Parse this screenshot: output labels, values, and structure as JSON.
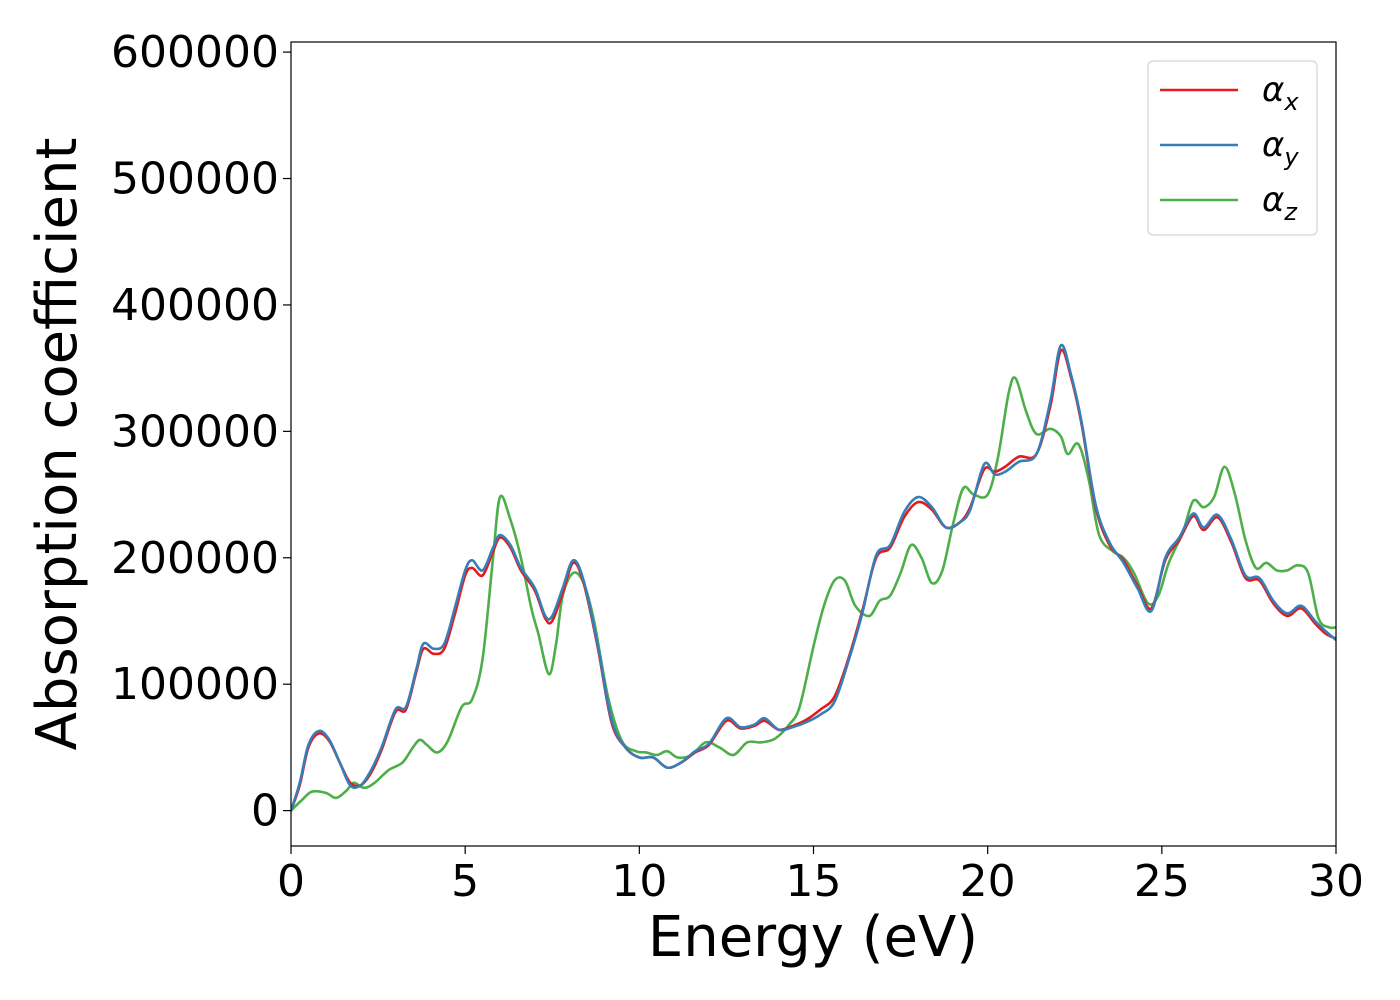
{
  "chart_data": {
    "type": "line",
    "title": "",
    "xlabel": "Energy (eV)",
    "ylabel": "Absorption coefficient",
    "xlim": [
      0,
      30
    ],
    "ylim": [
      -28000,
      608000
    ],
    "xticks": [
      0,
      5,
      10,
      15,
      20,
      25,
      30
    ],
    "xtick_labels": [
      "0",
      "5",
      "10",
      "15",
      "20",
      "25",
      "30"
    ],
    "yticks": [
      0,
      100000,
      200000,
      300000,
      400000,
      500000,
      600000
    ],
    "ytick_labels": [
      "0",
      "100000",
      "200000",
      "300000",
      "400000",
      "500000",
      "600000"
    ],
    "grid": false,
    "legend_position": "top-right",
    "series": [
      {
        "name": "αx",
        "base": "α",
        "sub": "x",
        "color": "#e41a1c",
        "points": [
          [
            0,
            0
          ],
          [
            0.25,
            20000
          ],
          [
            0.5,
            50000
          ],
          [
            0.8,
            61000
          ],
          [
            1.1,
            55000
          ],
          [
            1.4,
            38000
          ],
          [
            1.7,
            22000
          ],
          [
            2.0,
            20000
          ],
          [
            2.3,
            30000
          ],
          [
            2.6,
            48000
          ],
          [
            3.0,
            78000
          ],
          [
            3.3,
            80000
          ],
          [
            3.6,
            110000
          ],
          [
            3.8,
            128000
          ],
          [
            4.1,
            124000
          ],
          [
            4.4,
            128000
          ],
          [
            4.7,
            155000
          ],
          [
            5.0,
            186000
          ],
          [
            5.2,
            192000
          ],
          [
            5.5,
            186000
          ],
          [
            5.8,
            205000
          ],
          [
            6.0,
            216000
          ],
          [
            6.3,
            208000
          ],
          [
            6.6,
            190000
          ],
          [
            7.0,
            174000
          ],
          [
            7.3,
            152000
          ],
          [
            7.5,
            150000
          ],
          [
            7.8,
            172000
          ],
          [
            8.1,
            196000
          ],
          [
            8.4,
            180000
          ],
          [
            8.8,
            130000
          ],
          [
            9.2,
            70000
          ],
          [
            9.6,
            50000
          ],
          [
            10.0,
            42000
          ],
          [
            10.4,
            42000
          ],
          [
            10.8,
            34000
          ],
          [
            11.2,
            38000
          ],
          [
            11.6,
            46000
          ],
          [
            12.0,
            52000
          ],
          [
            12.5,
            71000
          ],
          [
            12.9,
            65000
          ],
          [
            13.3,
            67000
          ],
          [
            13.6,
            71000
          ],
          [
            14.0,
            64000
          ],
          [
            14.4,
            67000
          ],
          [
            14.8,
            72000
          ],
          [
            15.2,
            80000
          ],
          [
            15.6,
            90000
          ],
          [
            16.0,
            120000
          ],
          [
            16.4,
            158000
          ],
          [
            16.8,
            200000
          ],
          [
            17.2,
            208000
          ],
          [
            17.6,
            232000
          ],
          [
            18.0,
            244000
          ],
          [
            18.4,
            238000
          ],
          [
            18.8,
            224000
          ],
          [
            19.2,
            228000
          ],
          [
            19.5,
            240000
          ],
          [
            19.9,
            270000
          ],
          [
            20.2,
            268000
          ],
          [
            20.5,
            272000
          ],
          [
            20.9,
            280000
          ],
          [
            21.4,
            282000
          ],
          [
            21.8,
            320000
          ],
          [
            22.1,
            364000
          ],
          [
            22.4,
            342000
          ],
          [
            22.7,
            305000
          ],
          [
            23.1,
            240000
          ],
          [
            23.5,
            210000
          ],
          [
            23.9,
            198000
          ],
          [
            24.3,
            178000
          ],
          [
            24.7,
            160000
          ],
          [
            25.1,
            198000
          ],
          [
            25.5,
            214000
          ],
          [
            25.9,
            233000
          ],
          [
            26.2,
            222000
          ],
          [
            26.6,
            232000
          ],
          [
            27.0,
            212000
          ],
          [
            27.4,
            184000
          ],
          [
            27.8,
            182000
          ],
          [
            28.2,
            164000
          ],
          [
            28.6,
            154000
          ],
          [
            29.0,
            160000
          ],
          [
            29.4,
            148000
          ],
          [
            29.7,
            140000
          ],
          [
            30.0,
            136000
          ]
        ]
      },
      {
        "name": "αy",
        "base": "α",
        "sub": "y",
        "color": "#377eb8",
        "points": [
          [
            0,
            0
          ],
          [
            0.25,
            22000
          ],
          [
            0.5,
            52000
          ],
          [
            0.8,
            63000
          ],
          [
            1.1,
            56000
          ],
          [
            1.4,
            38000
          ],
          [
            1.7,
            20000
          ],
          [
            2.0,
            20000
          ],
          [
            2.3,
            32000
          ],
          [
            2.6,
            50000
          ],
          [
            3.0,
            80000
          ],
          [
            3.3,
            82000
          ],
          [
            3.6,
            112000
          ],
          [
            3.8,
            132000
          ],
          [
            4.1,
            128000
          ],
          [
            4.4,
            132000
          ],
          [
            4.7,
            160000
          ],
          [
            5.0,
            190000
          ],
          [
            5.2,
            198000
          ],
          [
            5.5,
            190000
          ],
          [
            5.8,
            208000
          ],
          [
            6.0,
            218000
          ],
          [
            6.3,
            210000
          ],
          [
            6.6,
            192000
          ],
          [
            7.0,
            176000
          ],
          [
            7.3,
            154000
          ],
          [
            7.5,
            154000
          ],
          [
            7.8,
            176000
          ],
          [
            8.1,
            198000
          ],
          [
            8.4,
            182000
          ],
          [
            8.8,
            132000
          ],
          [
            9.2,
            72000
          ],
          [
            9.6,
            50000
          ],
          [
            10.0,
            42000
          ],
          [
            10.4,
            42000
          ],
          [
            10.8,
            34000
          ],
          [
            11.2,
            38000
          ],
          [
            11.6,
            47000
          ],
          [
            12.0,
            53000
          ],
          [
            12.5,
            73000
          ],
          [
            12.9,
            66000
          ],
          [
            13.3,
            68000
          ],
          [
            13.6,
            73000
          ],
          [
            14.0,
            64000
          ],
          [
            14.4,
            66000
          ],
          [
            14.8,
            70000
          ],
          [
            15.2,
            76000
          ],
          [
            15.6,
            86000
          ],
          [
            16.0,
            118000
          ],
          [
            16.4,
            156000
          ],
          [
            16.8,
            202000
          ],
          [
            17.2,
            210000
          ],
          [
            17.6,
            236000
          ],
          [
            18.0,
            248000
          ],
          [
            18.4,
            240000
          ],
          [
            18.8,
            224000
          ],
          [
            19.2,
            228000
          ],
          [
            19.5,
            238000
          ],
          [
            19.9,
            274000
          ],
          [
            20.2,
            266000
          ],
          [
            20.5,
            268000
          ],
          [
            20.9,
            276000
          ],
          [
            21.4,
            282000
          ],
          [
            21.8,
            324000
          ],
          [
            22.1,
            368000
          ],
          [
            22.4,
            344000
          ],
          [
            22.7,
            307000
          ],
          [
            23.1,
            242000
          ],
          [
            23.5,
            212000
          ],
          [
            23.9,
            196000
          ],
          [
            24.3,
            176000
          ],
          [
            24.7,
            158000
          ],
          [
            25.1,
            200000
          ],
          [
            25.5,
            216000
          ],
          [
            25.9,
            235000
          ],
          [
            26.2,
            224000
          ],
          [
            26.6,
            234000
          ],
          [
            27.0,
            214000
          ],
          [
            27.4,
            186000
          ],
          [
            27.8,
            184000
          ],
          [
            28.2,
            166000
          ],
          [
            28.6,
            156000
          ],
          [
            29.0,
            162000
          ],
          [
            29.4,
            150000
          ],
          [
            29.7,
            142000
          ],
          [
            30.0,
            135000
          ]
        ]
      },
      {
        "name": "αz",
        "base": "α",
        "sub": "z",
        "color": "#4daf4a",
        "points": [
          [
            0,
            0
          ],
          [
            0.3,
            8000
          ],
          [
            0.6,
            15000
          ],
          [
            1.0,
            14000
          ],
          [
            1.3,
            10000
          ],
          [
            1.6,
            16000
          ],
          [
            1.8,
            22000
          ],
          [
            2.1,
            18000
          ],
          [
            2.4,
            22000
          ],
          [
            2.8,
            32000
          ],
          [
            3.2,
            38000
          ],
          [
            3.5,
            50000
          ],
          [
            3.7,
            56000
          ],
          [
            3.9,
            52000
          ],
          [
            4.2,
            46000
          ],
          [
            4.5,
            55000
          ],
          [
            4.9,
            82000
          ],
          [
            5.2,
            88000
          ],
          [
            5.5,
            120000
          ],
          [
            5.8,
            200000
          ],
          [
            6.0,
            248000
          ],
          [
            6.3,
            230000
          ],
          [
            6.6,
            200000
          ],
          [
            6.9,
            160000
          ],
          [
            7.1,
            140000
          ],
          [
            7.4,
            108000
          ],
          [
            7.6,
            130000
          ],
          [
            7.8,
            170000
          ],
          [
            8.1,
            188000
          ],
          [
            8.4,
            180000
          ],
          [
            8.7,
            150000
          ],
          [
            9.1,
            90000
          ],
          [
            9.5,
            55000
          ],
          [
            9.9,
            47000
          ],
          [
            10.2,
            46000
          ],
          [
            10.5,
            44000
          ],
          [
            10.8,
            47000
          ],
          [
            11.1,
            42000
          ],
          [
            11.5,
            44000
          ],
          [
            11.9,
            54000
          ],
          [
            12.3,
            50000
          ],
          [
            12.7,
            44000
          ],
          [
            13.1,
            54000
          ],
          [
            13.5,
            54000
          ],
          [
            13.9,
            57000
          ],
          [
            14.3,
            68000
          ],
          [
            14.6,
            82000
          ],
          [
            15.0,
            130000
          ],
          [
            15.3,
            162000
          ],
          [
            15.6,
            182000
          ],
          [
            15.9,
            182000
          ],
          [
            16.2,
            162000
          ],
          [
            16.6,
            154000
          ],
          [
            16.9,
            166000
          ],
          [
            17.2,
            170000
          ],
          [
            17.5,
            188000
          ],
          [
            17.8,
            210000
          ],
          [
            18.1,
            200000
          ],
          [
            18.4,
            180000
          ],
          [
            18.7,
            190000
          ],
          [
            19.0,
            226000
          ],
          [
            19.3,
            255000
          ],
          [
            19.6,
            250000
          ],
          [
            20.0,
            250000
          ],
          [
            20.3,
            280000
          ],
          [
            20.6,
            330000
          ],
          [
            20.8,
            342000
          ],
          [
            21.1,
            316000
          ],
          [
            21.4,
            298000
          ],
          [
            21.8,
            302000
          ],
          [
            22.1,
            296000
          ],
          [
            22.3,
            282000
          ],
          [
            22.6,
            290000
          ],
          [
            22.9,
            262000
          ],
          [
            23.2,
            218000
          ],
          [
            23.6,
            205000
          ],
          [
            23.9,
            200000
          ],
          [
            24.2,
            188000
          ],
          [
            24.6,
            164000
          ],
          [
            24.9,
            170000
          ],
          [
            25.2,
            196000
          ],
          [
            25.6,
            220000
          ],
          [
            25.9,
            245000
          ],
          [
            26.2,
            240000
          ],
          [
            26.5,
            248000
          ],
          [
            26.8,
            272000
          ],
          [
            27.1,
            250000
          ],
          [
            27.4,
            214000
          ],
          [
            27.7,
            192000
          ],
          [
            28.0,
            196000
          ],
          [
            28.3,
            190000
          ],
          [
            28.6,
            190000
          ],
          [
            28.9,
            194000
          ],
          [
            29.2,
            188000
          ],
          [
            29.5,
            152000
          ],
          [
            29.8,
            145000
          ],
          [
            30.0,
            145000
          ]
        ]
      }
    ]
  }
}
